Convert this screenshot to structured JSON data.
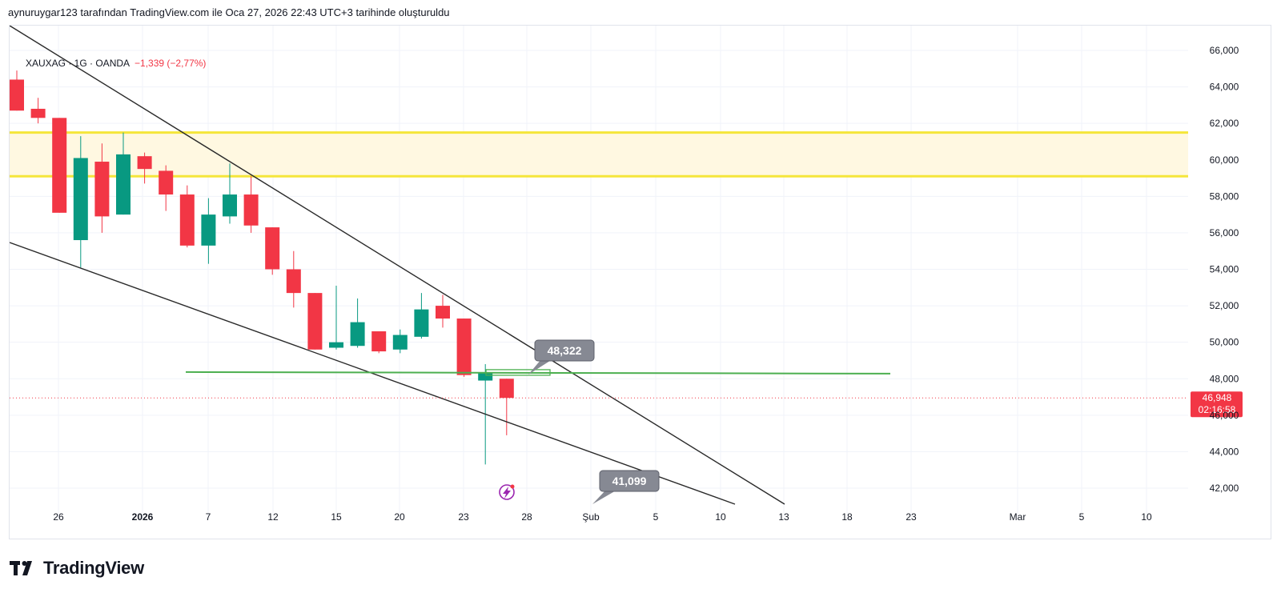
{
  "header": {
    "caption": "aynuruygar123 tarafından TradingView.com ile Oca 27, 2026 22:43 UTC+3 tarihinde oluşturuldu"
  },
  "legend": {
    "symbol": "XAUXAG · 1G · OANDA",
    "change": "−1,339 (−2,77%)"
  },
  "brand": {
    "name": "TradingView",
    "icon": "tradingview-logo-icon"
  },
  "colors": {
    "up": "#089981",
    "down": "#f23645",
    "zone_fill": "#fff8e1",
    "zone_line": "#f5e63a",
    "support": "#4caf50",
    "trend": "#2a2a2a",
    "label_bg": "#868993",
    "price_tag": "#f23645"
  },
  "chart_data": {
    "type": "candlestick",
    "title": "",
    "y_axis": {
      "min": 41000,
      "max": 66800,
      "ticks": [
        "42,000",
        "44,000",
        "46,000",
        "48,000",
        "50,000",
        "52,000",
        "54,000",
        "56,000",
        "58,000",
        "60,000",
        "62,000",
        "64,000",
        "66,000"
      ]
    },
    "x_axis": {
      "ticks": [
        "26",
        "2026",
        "7",
        "12",
        "15",
        "20",
        "23",
        "28",
        "Şub",
        "5",
        "10",
        "13",
        "18",
        "23",
        "Mar",
        "5",
        "10"
      ]
    },
    "candles": [
      {
        "o": 64400,
        "h": 64900,
        "l": 62700,
        "c": 62700
      },
      {
        "o": 62800,
        "h": 63400,
        "l": 62000,
        "c": 62300
      },
      {
        "o": 62300,
        "h": 62300,
        "l": 57100,
        "c": 57100
      },
      {
        "o": 55600,
        "h": 61300,
        "l": 54100,
        "c": 60100
      },
      {
        "o": 59900,
        "h": 60900,
        "l": 56000,
        "c": 56900
      },
      {
        "o": 57000,
        "h": 61500,
        "l": 57000,
        "c": 60300
      },
      {
        "o": 60200,
        "h": 60400,
        "l": 58700,
        "c": 59500
      },
      {
        "o": 59400,
        "h": 59700,
        "l": 57200,
        "c": 58100
      },
      {
        "o": 58100,
        "h": 58600,
        "l": 55200,
        "c": 55300
      },
      {
        "o": 55300,
        "h": 57900,
        "l": 54300,
        "c": 57000
      },
      {
        "o": 56900,
        "h": 59800,
        "l": 56500,
        "c": 58100
      },
      {
        "o": 58100,
        "h": 59100,
        "l": 56000,
        "c": 56400
      },
      {
        "o": 56300,
        "h": 56300,
        "l": 53700,
        "c": 54000
      },
      {
        "o": 54000,
        "h": 55000,
        "l": 51900,
        "c": 52700
      },
      {
        "o": 52700,
        "h": 52700,
        "l": 49600,
        "c": 49600
      },
      {
        "o": 49700,
        "h": 53100,
        "l": 49600,
        "c": 50000
      },
      {
        "o": 49800,
        "h": 52400,
        "l": 49700,
        "c": 51100
      },
      {
        "o": 50600,
        "h": 50600,
        "l": 49400,
        "c": 49500
      },
      {
        "o": 49600,
        "h": 50700,
        "l": 49400,
        "c": 50400
      },
      {
        "o": 50300,
        "h": 52700,
        "l": 50200,
        "c": 51800
      },
      {
        "o": 52000,
        "h": 52600,
        "l": 50800,
        "c": 51300
      },
      {
        "o": 51300,
        "h": 51300,
        "l": 48100,
        "c": 48200
      },
      {
        "o": 47900,
        "h": 48800,
        "l": 43300,
        "c": 48300
      },
      {
        "o": 48000,
        "h": 48000,
        "l": 44900,
        "c": 46948
      }
    ],
    "resistance_zone": {
      "low": 59100,
      "high": 61500
    },
    "support_level": 48322,
    "last_price": {
      "value": "46,948",
      "countdown": "02:16:58"
    },
    "labels": [
      {
        "text": "48,322",
        "value": 48322
      },
      {
        "text": "41,099",
        "value": 41099
      }
    ],
    "annotation_icon": "lightning-icon"
  }
}
